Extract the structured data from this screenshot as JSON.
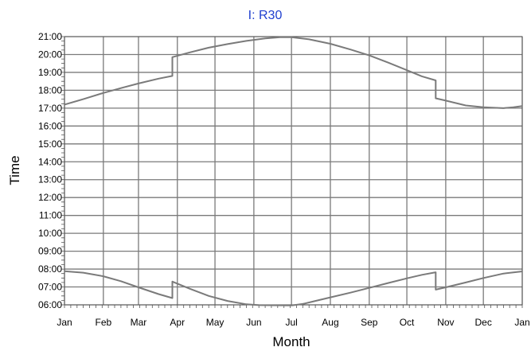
{
  "colors": {
    "title": "#1f3fcf",
    "grid": "#7a7a7a",
    "line": "#7a7a7a",
    "axis": "#555555",
    "text": "#000000"
  },
  "chart_data": {
    "type": "line",
    "title": "I: R30",
    "xlabel": "Month",
    "ylabel": "Time",
    "x_unit": "day of year",
    "xlim": [
      0,
      365
    ],
    "ylim": [
      6,
      21
    ],
    "grid": true,
    "x_ticks": [
      {
        "x": 0,
        "label": "Jan"
      },
      {
        "x": 31,
        "label": "Feb"
      },
      {
        "x": 59,
        "label": "Mar"
      },
      {
        "x": 90,
        "label": "Apr"
      },
      {
        "x": 120,
        "label": "May"
      },
      {
        "x": 151,
        "label": "Jun"
      },
      {
        "x": 181,
        "label": "Jul"
      },
      {
        "x": 212,
        "label": "Aug"
      },
      {
        "x": 243,
        "label": "Sep"
      },
      {
        "x": 273,
        "label": "Oct"
      },
      {
        "x": 304,
        "label": "Nov"
      },
      {
        "x": 334,
        "label": "Dec"
      },
      {
        "x": 365,
        "label": "Jan"
      }
    ],
    "y_ticks": [
      {
        "y": 6,
        "label": "06:00"
      },
      {
        "y": 7,
        "label": "07:00"
      },
      {
        "y": 8,
        "label": "08:00"
      },
      {
        "y": 9,
        "label": "09:00"
      },
      {
        "y": 10,
        "label": "10:00"
      },
      {
        "y": 11,
        "label": "11:00"
      },
      {
        "y": 12,
        "label": "12:00"
      },
      {
        "y": 13,
        "label": "13:00"
      },
      {
        "y": 14,
        "label": "14:00"
      },
      {
        "y": 15,
        "label": "15:00"
      },
      {
        "y": 16,
        "label": "16:00"
      },
      {
        "y": 17,
        "label": "17:00"
      },
      {
        "y": 18,
        "label": "18:00"
      },
      {
        "y": 19,
        "label": "19:00"
      },
      {
        "y": 20,
        "label": "20:00"
      },
      {
        "y": 21,
        "label": "21:00"
      }
    ],
    "series": [
      {
        "points": [
          [
            0,
            7.88
          ],
          [
            15,
            7.8
          ],
          [
            31,
            7.6
          ],
          [
            45,
            7.32
          ],
          [
            59,
            6.98
          ],
          [
            75,
            6.6
          ],
          [
            86,
            6.38
          ],
          [
            86,
            7.3
          ],
          [
            100,
            6.9
          ],
          [
            115,
            6.5
          ],
          [
            130,
            6.22
          ],
          [
            145,
            6.03
          ],
          [
            155,
            5.98
          ],
          [
            181,
            5.97
          ],
          [
            190,
            6.05
          ],
          [
            200,
            6.22
          ],
          [
            212,
            6.42
          ],
          [
            228,
            6.68
          ],
          [
            243,
            6.95
          ],
          [
            258,
            7.22
          ],
          [
            273,
            7.48
          ],
          [
            285,
            7.68
          ],
          [
            296,
            7.82
          ],
          [
            296,
            6.85
          ],
          [
            304,
            6.98
          ],
          [
            320,
            7.25
          ],
          [
            334,
            7.5
          ],
          [
            350,
            7.75
          ],
          [
            365,
            7.87
          ]
        ]
      },
      {
        "points": [
          [
            0,
            17.2
          ],
          [
            15,
            17.5
          ],
          [
            31,
            17.85
          ],
          [
            45,
            18.12
          ],
          [
            59,
            18.38
          ],
          [
            75,
            18.65
          ],
          [
            86,
            18.8
          ],
          [
            86,
            19.85
          ],
          [
            100,
            20.12
          ],
          [
            115,
            20.38
          ],
          [
            130,
            20.58
          ],
          [
            145,
            20.76
          ],
          [
            160,
            20.9
          ],
          [
            172,
            20.97
          ],
          [
            181,
            20.97
          ],
          [
            195,
            20.85
          ],
          [
            212,
            20.6
          ],
          [
            228,
            20.28
          ],
          [
            243,
            19.95
          ],
          [
            258,
            19.55
          ],
          [
            273,
            19.12
          ],
          [
            285,
            18.78
          ],
          [
            296,
            18.55
          ],
          [
            296,
            17.55
          ],
          [
            304,
            17.42
          ],
          [
            320,
            17.15
          ],
          [
            334,
            17.05
          ],
          [
            350,
            17.0
          ],
          [
            358,
            17.05
          ],
          [
            365,
            17.12
          ]
        ]
      }
    ]
  }
}
